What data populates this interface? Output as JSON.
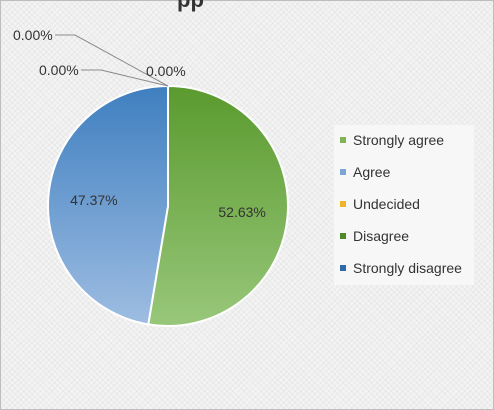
{
  "title_fragment": "pp",
  "chart_data": {
    "type": "pie",
    "labels": [
      "Strongly agree",
      "Agree",
      "Undecided",
      "Disagree",
      "Strongly disagree"
    ],
    "values": [
      52.63,
      47.37,
      0.0,
      0.0,
      0.0
    ],
    "data_labels": [
      "52.63%",
      "47.37%",
      "0.00%",
      "0.00%",
      "0.00%"
    ],
    "colors": [
      "#80b25a",
      "#7aa5d4",
      "#f0b428",
      "#4f8a2a",
      "#2e6aa8"
    ],
    "legend_position": "right"
  }
}
